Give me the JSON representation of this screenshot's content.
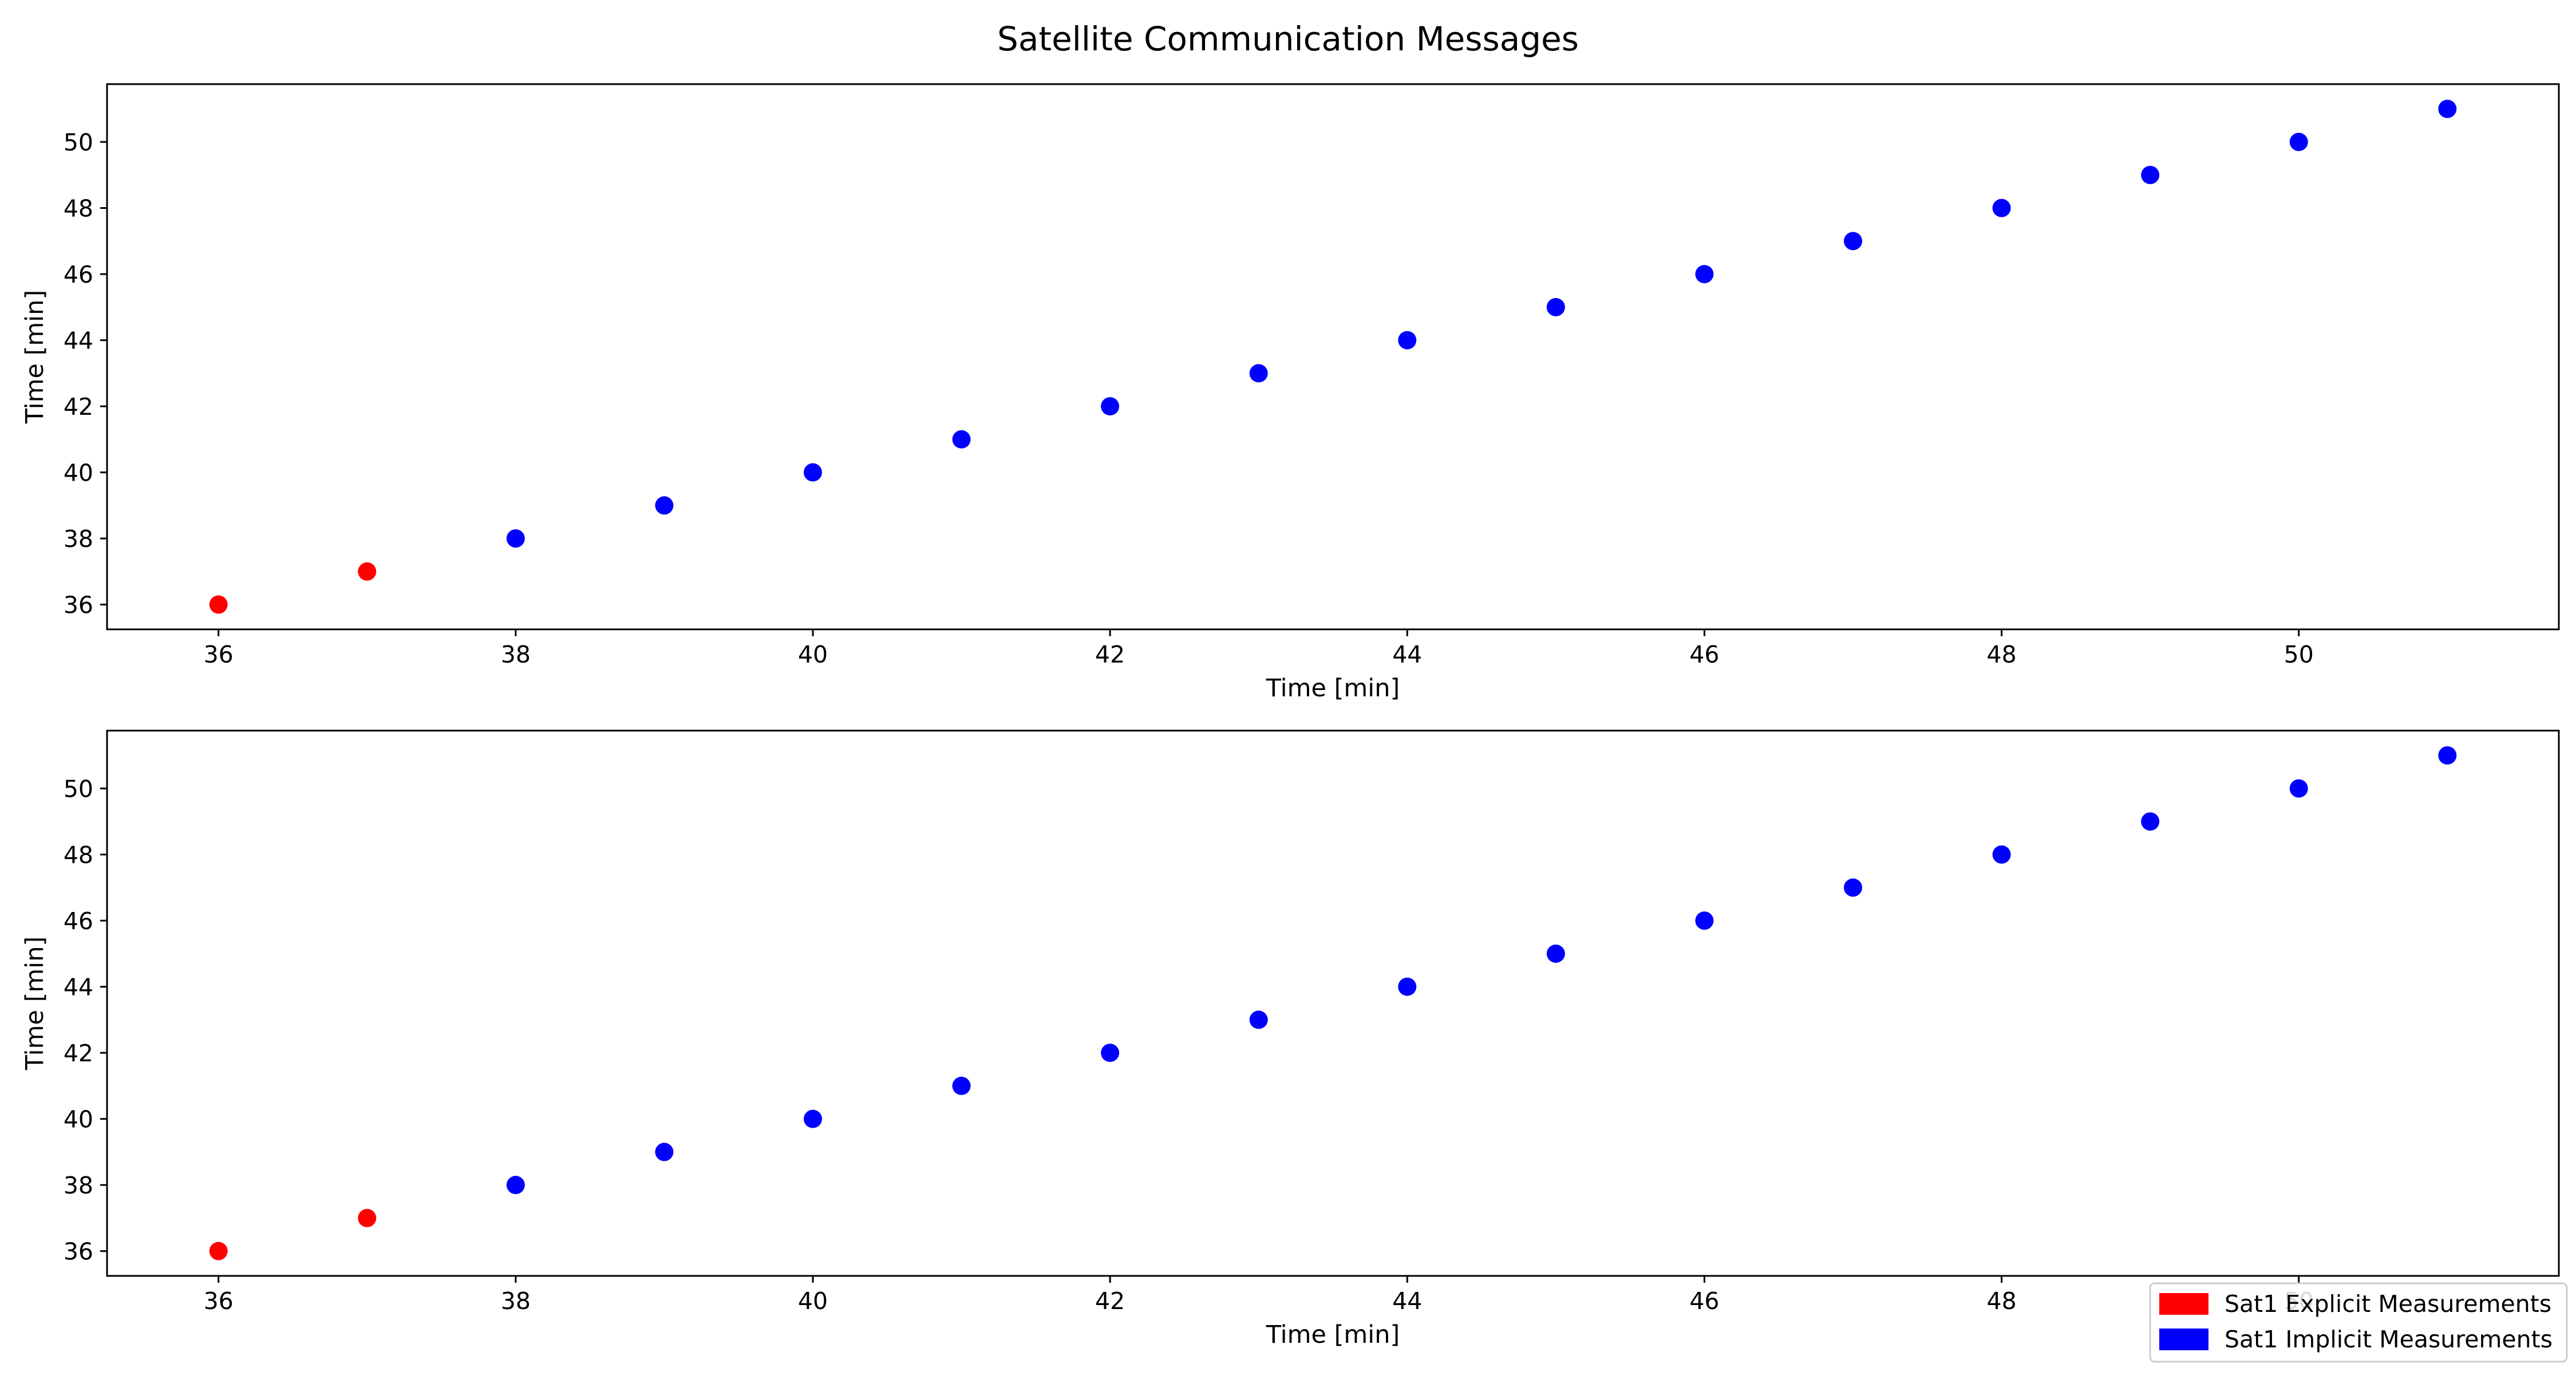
{
  "figure": {
    "title": "Satellite Communication Messages"
  },
  "legend": {
    "placement": "lower-right",
    "entries": [
      {
        "label": "Sat1 Explicit Measurements",
        "color": "#ff0000"
      },
      {
        "label": "Sat1 Implicit Measurements",
        "color": "#0000ff"
      }
    ]
  },
  "chart_data": [
    {
      "type": "scatter",
      "xlabel": "Time [min]",
      "ylabel": "Time [min]",
      "xlim": [
        35.25,
        51.75
      ],
      "ylim": [
        35.25,
        51.75
      ],
      "xticks": [
        36,
        38,
        40,
        42,
        44,
        46,
        48,
        50
      ],
      "yticks": [
        36,
        38,
        40,
        42,
        44,
        46,
        48,
        50
      ],
      "grid": false,
      "series": [
        {
          "name": "Sat1 Explicit Measurements",
          "color": "#ff0000",
          "points": [
            [
              36,
              36
            ],
            [
              37,
              37
            ]
          ]
        },
        {
          "name": "Sat1 Implicit Measurements",
          "color": "#0000ff",
          "points": [
            [
              38,
              38
            ],
            [
              39,
              39
            ],
            [
              40,
              40
            ],
            [
              41,
              41
            ],
            [
              42,
              42
            ],
            [
              43,
              43
            ],
            [
              44,
              44
            ],
            [
              45,
              45
            ],
            [
              46,
              46
            ],
            [
              47,
              47
            ],
            [
              48,
              48
            ],
            [
              49,
              49
            ],
            [
              50,
              50
            ],
            [
              51,
              51
            ]
          ]
        }
      ]
    },
    {
      "type": "scatter",
      "xlabel": "Time [min]",
      "ylabel": "Time [min]",
      "xlim": [
        35.25,
        51.75
      ],
      "ylim": [
        35.25,
        51.75
      ],
      "xticks": [
        36,
        38,
        40,
        42,
        44,
        46,
        48,
        50
      ],
      "yticks": [
        36,
        38,
        40,
        42,
        44,
        46,
        48,
        50
      ],
      "grid": false,
      "series": [
        {
          "name": "Sat1 Explicit Measurements",
          "color": "#ff0000",
          "points": [
            [
              36,
              36
            ],
            [
              37,
              37
            ]
          ]
        },
        {
          "name": "Sat1 Implicit Measurements",
          "color": "#0000ff",
          "points": [
            [
              38,
              38
            ],
            [
              39,
              39
            ],
            [
              40,
              40
            ],
            [
              41,
              41
            ],
            [
              42,
              42
            ],
            [
              43,
              43
            ],
            [
              44,
              44
            ],
            [
              45,
              45
            ],
            [
              46,
              46
            ],
            [
              47,
              47
            ],
            [
              48,
              48
            ],
            [
              49,
              49
            ],
            [
              50,
              50
            ],
            [
              51,
              51
            ]
          ]
        }
      ]
    }
  ]
}
